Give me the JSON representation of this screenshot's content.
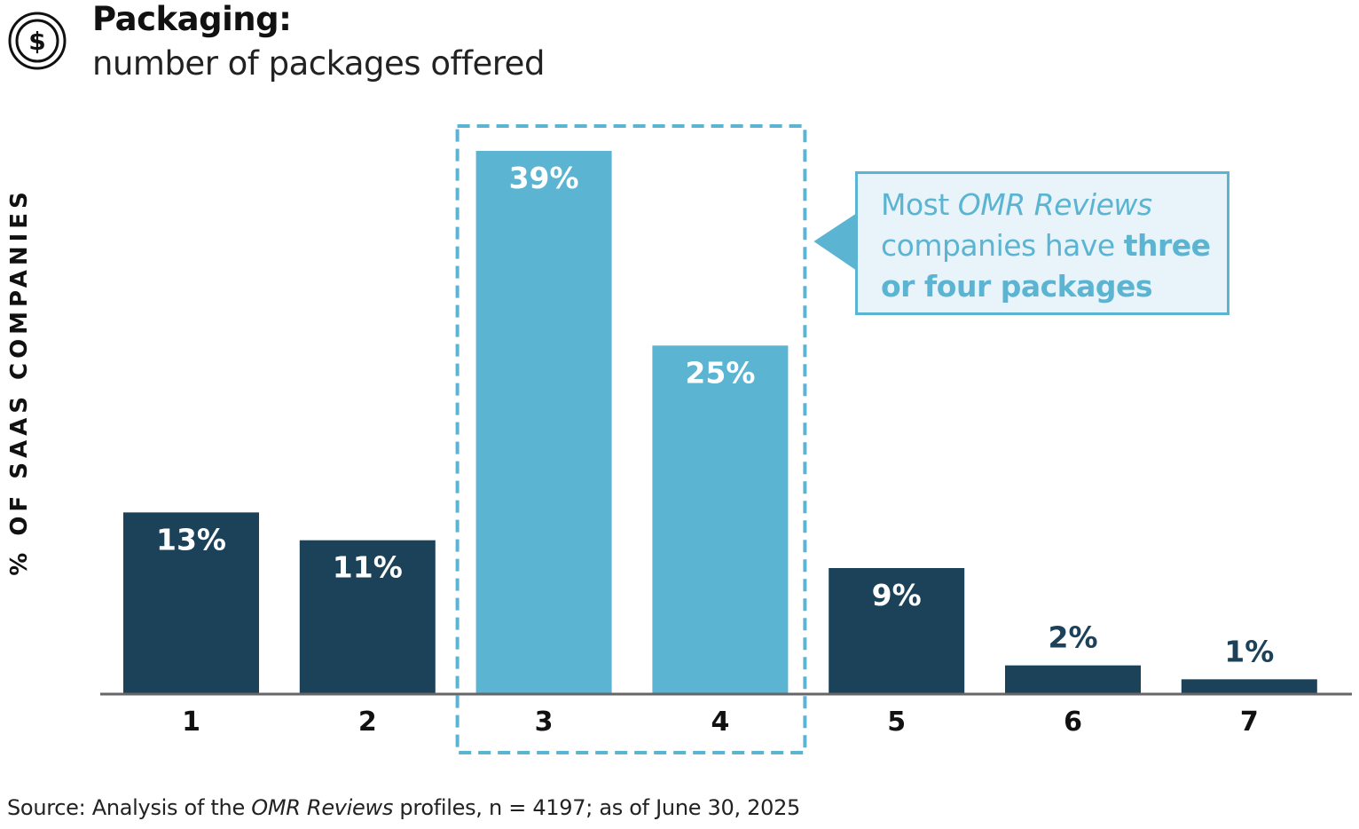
{
  "header": {
    "title": "Packaging:",
    "subtitle": "number of packages offered",
    "icon": "dollar-coin-icon"
  },
  "chart_data": {
    "type": "bar",
    "categories": [
      "1",
      "2",
      "3",
      "4",
      "5",
      "6",
      "7"
    ],
    "values": [
      13,
      11,
      39,
      25,
      9,
      2,
      1
    ],
    "value_labels": [
      "13%",
      "11%",
      "39%",
      "25%",
      "9%",
      "2%",
      "1%"
    ],
    "highlighted": [
      "3",
      "4"
    ],
    "ylabel": "% OF SAAS COMPANIES",
    "ylim": [
      0,
      39
    ],
    "grid": false,
    "colors": {
      "default": "#1c4259",
      "highlight": "#5ab4d2",
      "axis": "#666666"
    }
  },
  "callout": {
    "part1": "Most ",
    "part2_italic": "OMR Reviews",
    "part3": " companies have ",
    "part4_bold": "three or four packages"
  },
  "source": {
    "part1": "Source: Analysis of the ",
    "part2_italic": "OMR Reviews",
    "part3": " profiles, n = 4197; as of June 30, 2025"
  }
}
